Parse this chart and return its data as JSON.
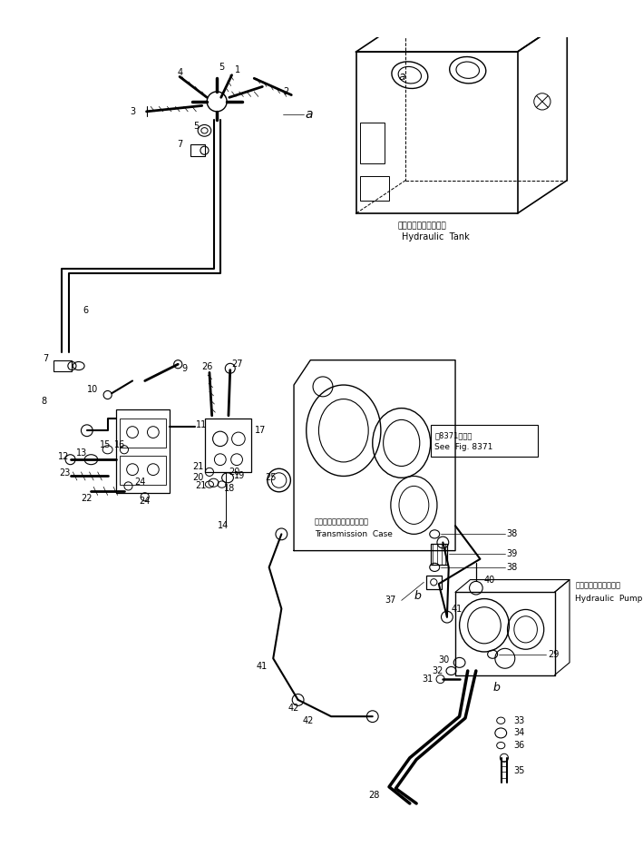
{
  "bg_color": "#ffffff",
  "line_color": "#000000",
  "figsize": [
    7.09,
    9.33
  ],
  "dpi": 100,
  "lw": 0.7,
  "elements": {
    "hydraulic_tank_label_jp": "ハイドロリックタンク",
    "hydraulic_tank_label_en": "Hydraulic  Tank",
    "hydraulic_pump_label_jp": "ハイドロリックポンプ",
    "hydraulic_pump_label_en": "Hydraulic  Pump",
    "transmission_label_jp": "トランスミッションケース",
    "transmission_label_en": "Transmission  Case",
    "see_fig_jp": "第8371図参照",
    "see_fig_en": "See  Fig. 8371"
  }
}
